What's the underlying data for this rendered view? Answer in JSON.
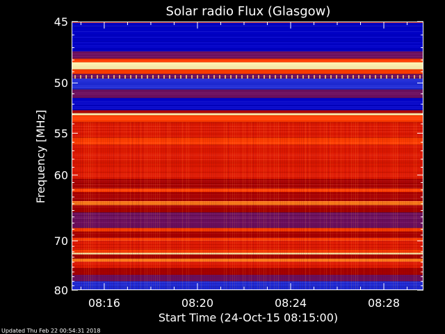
{
  "chart_data": {
    "type": "heatmap",
    "title": "Solar radio Flux (Glasgow)",
    "xlabel": "Start Time (24-Oct-15 08:15:00)",
    "ylabel": "Frequency [MHz]",
    "x_ticks": [
      "08:16",
      "08:20",
      "08:24",
      "08:28"
    ],
    "x_tick_minutes": [
      1,
      5,
      9,
      13
    ],
    "xlim_minutes": [
      -0.4,
      14.7
    ],
    "y_ticks": [
      45,
      50,
      55,
      60,
      70,
      80
    ],
    "ylim": [
      45,
      80
    ],
    "yscale": "reciprocal",
    "colorscale": [
      "#000064",
      "#0000c8",
      "#1e2ad6",
      "#6e1060",
      "#aa0000",
      "#e01800",
      "#ff3c00",
      "#ff7a1a",
      "#ffc050",
      "#fff2b0"
    ],
    "bands": [
      {
        "from": 44.6,
        "to": 45.1,
        "level": 4
      },
      {
        "from": 45.1,
        "to": 45.4,
        "level": 1
      },
      {
        "from": 45.4,
        "to": 47.3,
        "level": 1
      },
      {
        "from": 47.3,
        "to": 47.9,
        "level": 3
      },
      {
        "from": 47.9,
        "to": 48.2,
        "level": 6
      },
      {
        "from": 48.2,
        "to": 48.8,
        "level": 9
      },
      {
        "from": 48.8,
        "to": 49.2,
        "level": 6
      },
      {
        "from": 49.2,
        "to": 49.6,
        "level": 3
      },
      {
        "from": 49.6,
        "to": 50.6,
        "level": 2
      },
      {
        "from": 50.6,
        "to": 51.4,
        "level": 3
      },
      {
        "from": 51.4,
        "to": 52.6,
        "level": 1
      },
      {
        "from": 52.6,
        "to": 52.9,
        "level": 4
      },
      {
        "from": 52.9,
        "to": 53.1,
        "level": 9
      },
      {
        "from": 53.1,
        "to": 53.8,
        "level": 6
      },
      {
        "from": 53.8,
        "to": 55.5,
        "level": 5
      },
      {
        "from": 55.5,
        "to": 56.3,
        "level": 6
      },
      {
        "from": 56.3,
        "to": 58.5,
        "level": 5
      },
      {
        "from": 58.5,
        "to": 60.5,
        "level": 5
      },
      {
        "from": 60.5,
        "to": 61.8,
        "level": 4
      },
      {
        "from": 61.8,
        "to": 62.3,
        "level": 6
      },
      {
        "from": 62.3,
        "to": 63.6,
        "level": 4
      },
      {
        "from": 63.6,
        "to": 64.2,
        "level": 7
      },
      {
        "from": 64.2,
        "to": 65.3,
        "level": 4
      },
      {
        "from": 65.3,
        "to": 67.8,
        "level": 3
      },
      {
        "from": 67.8,
        "to": 68.4,
        "level": 6
      },
      {
        "from": 68.4,
        "to": 69.5,
        "level": 4
      },
      {
        "from": 69.5,
        "to": 70.0,
        "level": 6
      },
      {
        "from": 70.0,
        "to": 71.6,
        "level": 5
      },
      {
        "from": 71.6,
        "to": 72.2,
        "level": 6
      },
      {
        "from": 72.2,
        "to": 72.5,
        "level": 9
      },
      {
        "from": 72.5,
        "to": 73.3,
        "level": 4
      },
      {
        "from": 73.3,
        "to": 73.9,
        "level": 7
      },
      {
        "from": 73.9,
        "to": 75.2,
        "level": 5
      },
      {
        "from": 75.2,
        "to": 76.6,
        "level": 4
      },
      {
        "from": 76.6,
        "to": 78.0,
        "level": 3
      },
      {
        "from": 78.0,
        "to": 80.4,
        "level": 2
      }
    ]
  },
  "footer": {
    "updated": "Updated Thu Feb 22 00:54:31 2018"
  }
}
